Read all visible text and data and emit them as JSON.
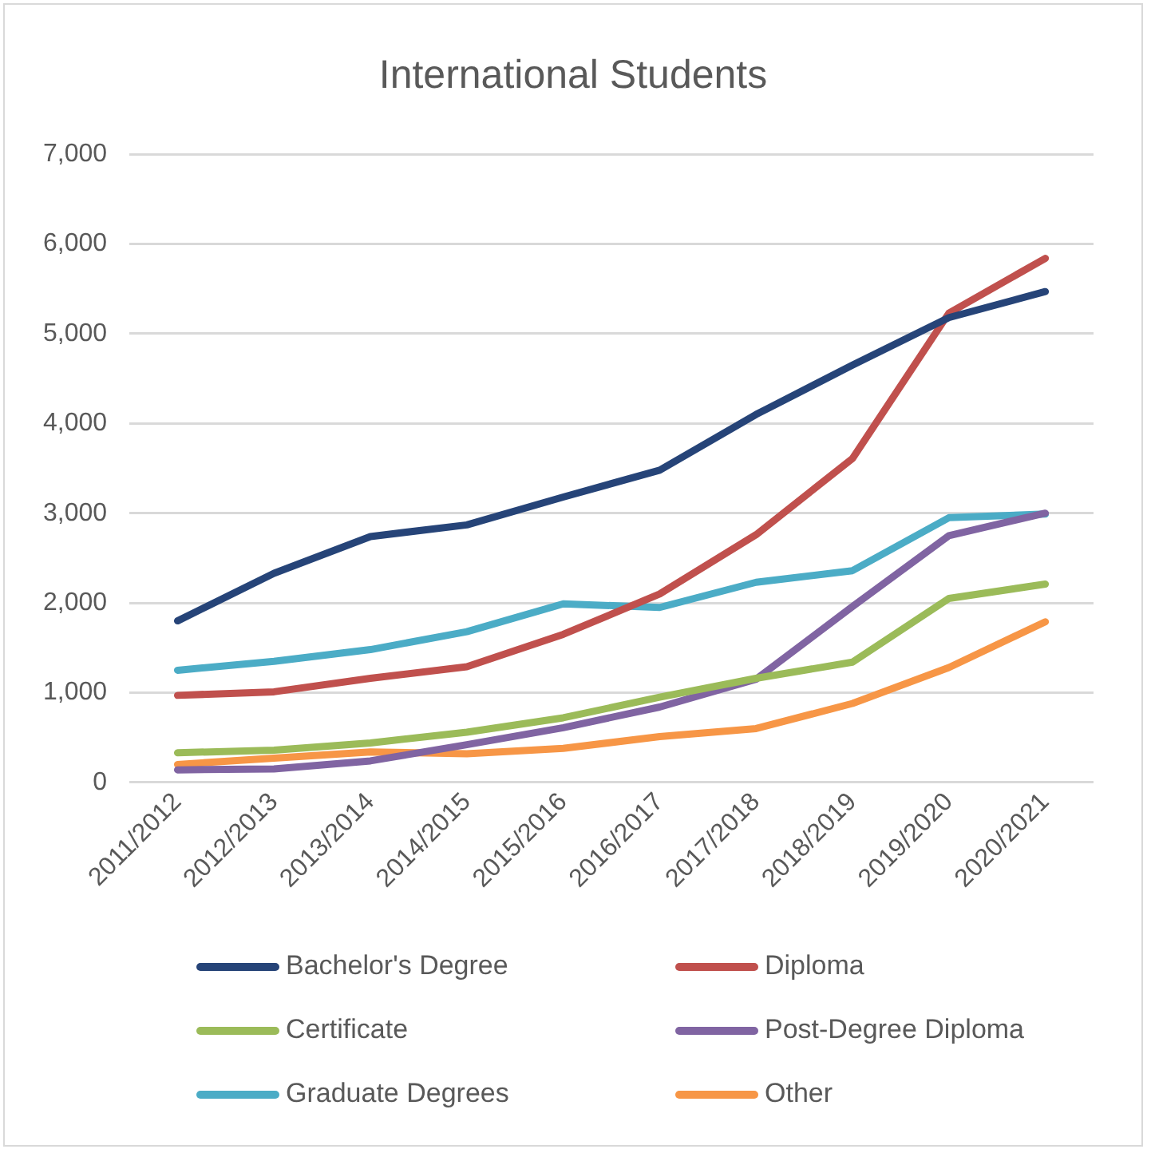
{
  "chart_data": {
    "type": "line",
    "title": "International Students",
    "categories": [
      "2011/2012",
      "2012/2013",
      "2013/2014",
      "2014/2015",
      "2015/2016",
      "2016/2017",
      "2017/2018",
      "2018/2019",
      "2019/2020",
      "2020/2021"
    ],
    "series": [
      {
        "name": "Bachelor's Degree",
        "color": "#264478",
        "values": [
          1800,
          2330,
          2740,
          2870,
          3180,
          3480,
          4100,
          4650,
          5180,
          5470
        ]
      },
      {
        "name": "Diploma",
        "color": "#c0504d",
        "values": [
          970,
          1010,
          1160,
          1290,
          1650,
          2100,
          2760,
          3610,
          5230,
          5840
        ]
      },
      {
        "name": "Certificate",
        "color": "#9bbb59",
        "values": [
          330,
          360,
          440,
          560,
          720,
          950,
          1160,
          1340,
          2050,
          2210
        ]
      },
      {
        "name": "Post-Degree Diploma",
        "color": "#8064a2",
        "values": [
          140,
          150,
          240,
          420,
          610,
          840,
          1150,
          1960,
          2750,
          3000
        ]
      },
      {
        "name": "Graduate Degrees",
        "color": "#4bacc6",
        "values": [
          1250,
          1350,
          1480,
          1680,
          1990,
          1950,
          2230,
          2360,
          2950,
          2990
        ]
      },
      {
        "name": "Other",
        "color": "#f79646",
        "values": [
          200,
          270,
          340,
          320,
          380,
          510,
          600,
          880,
          1280,
          1790
        ]
      }
    ],
    "ylim": [
      0,
      7000
    ],
    "yticks": [
      {
        "value": 0,
        "label": "0"
      },
      {
        "value": 1000,
        "label": "1,000"
      },
      {
        "value": 2000,
        "label": "2,000"
      },
      {
        "value": 3000,
        "label": "3,000"
      },
      {
        "value": 4000,
        "label": "4,000"
      },
      {
        "value": 5000,
        "label": "5,000"
      },
      {
        "value": 6000,
        "label": "6,000"
      },
      {
        "value": 7000,
        "label": "7,000"
      }
    ],
    "grid": "y",
    "legend": "bottom",
    "marker": "none",
    "line_style": "solid"
  }
}
